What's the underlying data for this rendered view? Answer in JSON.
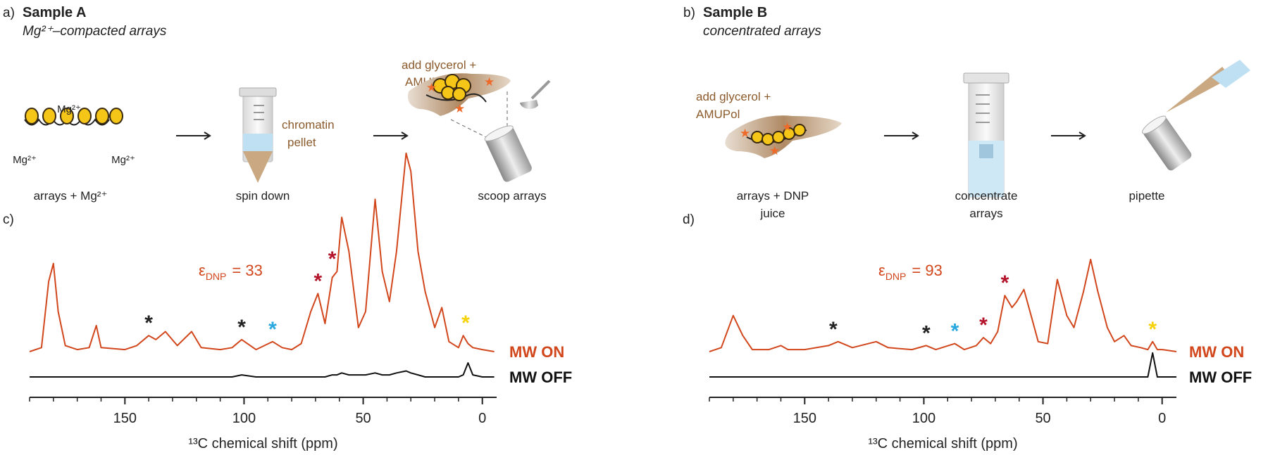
{
  "panels": [
    {
      "label": "a)",
      "title": "Sample A",
      "subtitle": "Mg²⁺–compacted arrays",
      "ion_labels": [
        "Mg²⁺",
        "Mg²⁺",
        "Mg²⁺"
      ],
      "pellet_label": [
        "chromatin",
        "pellet"
      ],
      "additive": [
        "add glycerol +",
        "AMUPol"
      ],
      "steps": [
        [
          "arrays + Mg²⁺"
        ],
        [
          "spin down"
        ],
        [
          "scoop arrays"
        ]
      ]
    },
    {
      "label": "b)",
      "title": "Sample B",
      "subtitle": "concentrated arrays",
      "additive": [
        "add glycerol +",
        "AMUPol"
      ],
      "steps": [
        [
          "arrays + DNP",
          "juice"
        ],
        [
          "concentrate",
          "arrays"
        ],
        [
          "pipette"
        ]
      ]
    }
  ],
  "chart_data": [
    {
      "type": "line",
      "label": "c)",
      "xlabel": "¹³C chemical shift (ppm)",
      "xlim": [
        190,
        -6
      ],
      "xticks": [
        150,
        100,
        50,
        0
      ],
      "xminorticks": [
        190,
        180,
        170,
        160,
        140,
        130,
        120,
        110,
        90,
        80,
        70,
        60,
        40,
        30,
        20,
        10
      ],
      "ylim": [
        0,
        100
      ],
      "annotation": {
        "symbol": "ε",
        "subscript": "DNP",
        "text": "= 33"
      },
      "x": [
        190,
        185,
        182,
        180,
        178,
        175,
        170,
        165,
        162,
        160,
        150,
        145,
        140,
        137,
        133,
        128,
        122,
        118,
        110,
        105,
        101,
        95,
        88,
        84,
        80,
        76,
        72,
        69,
        66,
        63,
        61,
        59,
        56,
        52,
        49,
        45,
        42,
        39,
        36,
        32,
        30,
        27,
        24,
        20,
        17,
        14,
        10,
        8,
        6,
        4,
        0,
        -5
      ],
      "series": [
        {
          "name": "MW ON",
          "color": "#d2461c",
          "values": [
            0,
            2,
            35,
            44,
            20,
            3,
            1,
            2,
            13,
            2,
            1,
            3,
            8,
            6,
            10,
            3,
            10,
            2,
            1,
            2,
            6,
            1,
            5,
            2,
            1,
            4,
            20,
            29,
            14,
            37,
            40,
            67,
            50,
            12,
            20,
            76,
            40,
            25,
            50,
            99,
            90,
            50,
            30,
            12,
            22,
            5,
            2,
            8,
            4,
            2,
            1,
            0
          ]
        },
        {
          "name": "MW OFF",
          "color": "#111111",
          "values": [
            0,
            0,
            0,
            0,
            0,
            0,
            0,
            0,
            0,
            0,
            0,
            0,
            0,
            0,
            0,
            0,
            0,
            0,
            0,
            0,
            1,
            0,
            0,
            0,
            0,
            0,
            0,
            0,
            0,
            1,
            1,
            2,
            1,
            1,
            1,
            2,
            1,
            1,
            2,
            3,
            2,
            1,
            0,
            0,
            0,
            0,
            0,
            1,
            7,
            1,
            0,
            0
          ]
        }
      ],
      "markers": [
        {
          "x": 140,
          "label": "*",
          "color": "#222222"
        },
        {
          "x": 101,
          "label": "*",
          "color": "#222222"
        },
        {
          "x": 88,
          "label": "*",
          "color": "#29a8e0"
        },
        {
          "x": 69,
          "label": "*",
          "color": "#b3132b"
        },
        {
          "x": 63,
          "label": "*",
          "color": "#b3132b"
        },
        {
          "x": 7,
          "label": "*",
          "color": "#f5d20a"
        }
      ]
    },
    {
      "type": "line",
      "label": "d)",
      "xlabel": "¹³C chemical shift (ppm)",
      "xlim": [
        190,
        -6
      ],
      "xticks": [
        150,
        100,
        50,
        0
      ],
      "xminorticks": [
        190,
        180,
        170,
        160,
        140,
        130,
        120,
        110,
        90,
        80,
        70,
        60,
        40,
        30,
        20,
        10
      ],
      "ylim": [
        0,
        100
      ],
      "annotation": {
        "symbol": "ε",
        "subscript": "DNP",
        "text": "= 93"
      },
      "x": [
        190,
        185,
        180,
        176,
        172,
        165,
        160,
        157,
        150,
        140,
        136,
        130,
        120,
        115,
        105,
        99,
        95,
        87,
        83,
        78,
        75,
        72,
        69,
        66,
        63,
        61,
        58,
        55,
        52,
        48,
        44,
        40,
        37,
        33,
        30,
        27,
        23,
        20,
        16,
        13,
        9,
        6,
        4,
        2,
        0,
        -6
      ],
      "series": [
        {
          "name": "MW ON",
          "color": "#d2461c",
          "values": [
            0,
            2,
            18,
            8,
            1,
            1,
            3,
            1,
            1,
            3,
            5,
            2,
            5,
            2,
            1,
            3,
            1,
            4,
            1,
            3,
            7,
            4,
            10,
            28,
            22,
            25,
            31,
            18,
            5,
            4,
            36,
            18,
            12,
            30,
            46,
            30,
            12,
            5,
            8,
            3,
            2,
            1,
            5,
            1,
            1,
            0
          ]
        },
        {
          "name": "MW OFF",
          "color": "#111111",
          "values": [
            0,
            0,
            0,
            0,
            0,
            0,
            0,
            0,
            0,
            0,
            0,
            0,
            0,
            0,
            0,
            0,
            0,
            0,
            0,
            0,
            0,
            0,
            0,
            0,
            0,
            0,
            0,
            0,
            0,
            0,
            0,
            0,
            0,
            0,
            0,
            0,
            0,
            0,
            0,
            0,
            0,
            0,
            12,
            0,
            0,
            0
          ]
        }
      ],
      "markers": [
        {
          "x": 138,
          "label": "*",
          "color": "#222222"
        },
        {
          "x": 99,
          "label": "*",
          "color": "#222222"
        },
        {
          "x": 87,
          "label": "*",
          "color": "#29a8e0"
        },
        {
          "x": 75,
          "label": "*",
          "color": "#b3132b"
        },
        {
          "x": 66,
          "label": "*",
          "color": "#b3132b"
        },
        {
          "x": 4,
          "label": "*",
          "color": "#f5d20a"
        }
      ]
    }
  ]
}
